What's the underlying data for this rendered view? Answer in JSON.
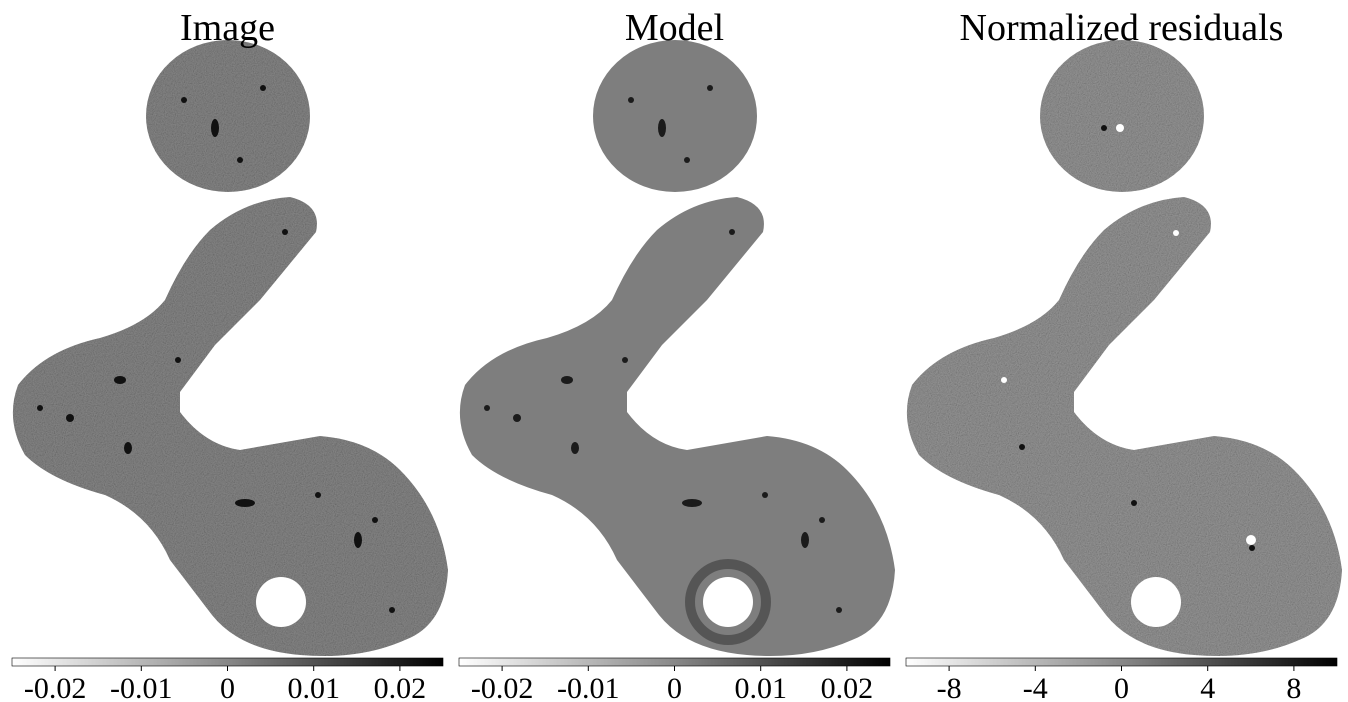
{
  "panels": [
    {
      "title": "Image",
      "colorbar": {
        "lim": [
          -0.025,
          0.025
        ],
        "ticks": [
          -0.02,
          -0.01,
          0,
          0.01,
          0.02
        ]
      }
    },
    {
      "title": "Model",
      "colorbar": {
        "lim": [
          -0.025,
          0.025
        ],
        "ticks": [
          -0.02,
          -0.01,
          0,
          0.01,
          0.02
        ]
      }
    },
    {
      "title": "Normalized residuals",
      "colorbar": {
        "lim": [
          -10,
          10
        ],
        "ticks": [
          -8,
          -4,
          0,
          4,
          8
        ]
      }
    }
  ]
}
